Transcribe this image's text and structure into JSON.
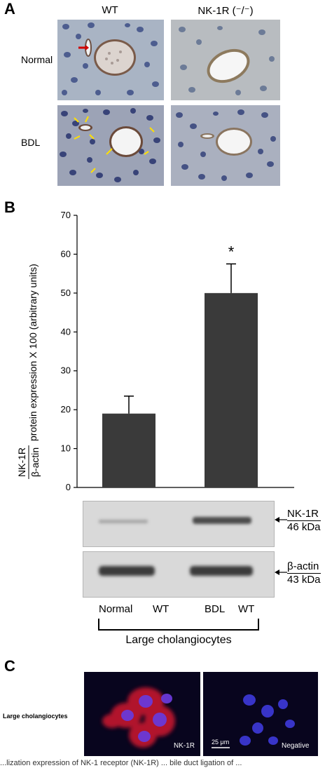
{
  "panel_a": {
    "letter": "A",
    "col_headers": [
      "WT",
      "NK-1R (⁻/⁻)"
    ],
    "row_labels": [
      "Normal",
      "BDL"
    ]
  },
  "panel_b": {
    "letter": "B",
    "blots": [
      {
        "label_line1": "NK-1R",
        "label_line2": "46 kDa"
      },
      {
        "label_line1": "β-actin",
        "label_line2": "43 kDa"
      }
    ],
    "lane_labels": [
      "Normal",
      "WT",
      "BDL",
      "WT"
    ],
    "group_label": "Large cholangiocytes",
    "significance": "*"
  },
  "chart_data": {
    "type": "bar",
    "categories": [
      "Normal WT",
      "BDL WT"
    ],
    "values": [
      19,
      50
    ],
    "errors": [
      4.5,
      7.5
    ],
    "yticks": [
      0,
      10,
      20,
      30,
      40,
      50,
      60,
      70
    ],
    "ylim": [
      0,
      70
    ],
    "ylabel_numerator": "NK-1R",
    "ylabel_denominator": "β-actin",
    "ylabel_rest": "protein expression X 100 (arbitrary units)",
    "bar_color": "#3a3a3a"
  },
  "panel_c": {
    "letter": "C",
    "row_label": "Large cholangiocytes",
    "tile_labels": [
      "NK-1R",
      "Negative"
    ],
    "scale_bar": "25 μm"
  },
  "caption": "...lization expression of NK-1 receptor (NK-1R) ... bile duct ligation of ..."
}
